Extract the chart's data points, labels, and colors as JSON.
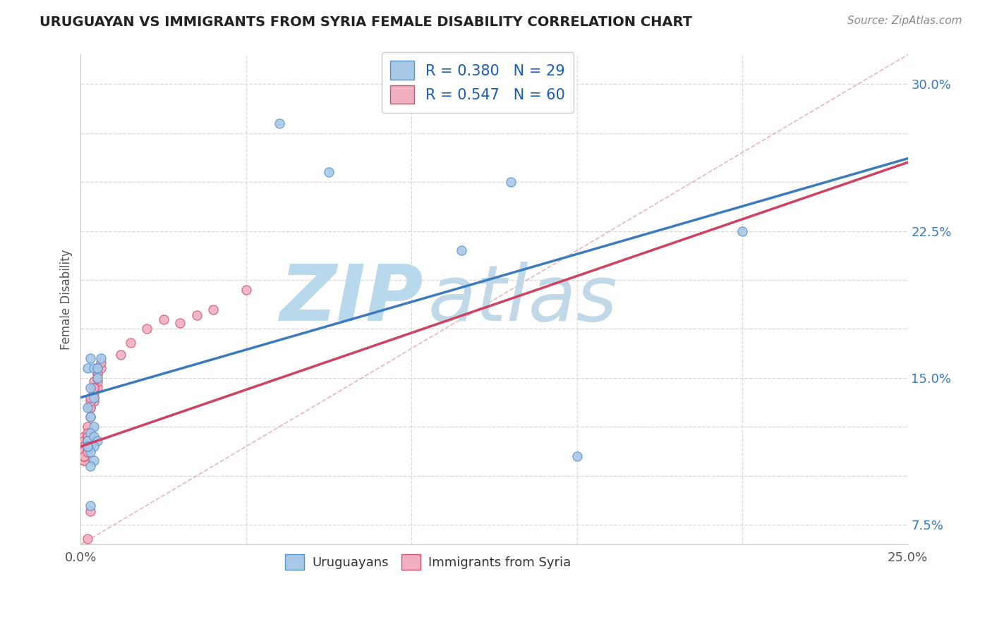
{
  "title": "URUGUAYAN VS IMMIGRANTS FROM SYRIA FEMALE DISABILITY CORRELATION CHART",
  "source": "Source: ZipAtlas.com",
  "ylabel": "Female Disability",
  "xlim": [
    0.0,
    0.25
  ],
  "ylim": [
    0.065,
    0.315
  ],
  "xticks": [
    0.0,
    0.05,
    0.1,
    0.15,
    0.2,
    0.25
  ],
  "yticks": [
    0.075,
    0.1,
    0.125,
    0.15,
    0.175,
    0.2,
    0.225,
    0.25,
    0.275,
    0.3
  ],
  "ytick_labels": [
    "7.5%",
    "",
    "",
    "15.0%",
    "",
    "",
    "22.5%",
    "",
    "",
    "30.0%"
  ],
  "xtick_labels": [
    "0.0%",
    "",
    "",
    "",
    "",
    "25.0%"
  ],
  "blue_color": "#a8c8e8",
  "pink_color": "#f0b0c0",
  "blue_edge_color": "#5590c8",
  "pink_edge_color": "#d05070",
  "blue_line_color": "#3a7abf",
  "pink_line_color": "#d04060",
  "diag_color": "#e8a0a8",
  "R_blue": 0.38,
  "N_blue": 29,
  "R_pink": 0.547,
  "N_pink": 60,
  "blue_line_y0": 0.14,
  "blue_line_y1": 0.262,
  "pink_line_y0": 0.115,
  "pink_line_y1": 0.26,
  "blue_scatter_x": [
    0.002,
    0.003,
    0.004,
    0.005,
    0.006,
    0.003,
    0.004,
    0.005,
    0.002,
    0.003,
    0.004,
    0.003,
    0.002,
    0.004,
    0.003,
    0.005,
    0.004,
    0.003,
    0.002,
    0.004,
    0.003,
    0.002,
    0.06,
    0.075,
    0.115,
    0.13,
    0.2,
    0.15,
    0.003
  ],
  "blue_scatter_y": [
    0.155,
    0.16,
    0.155,
    0.155,
    0.16,
    0.145,
    0.14,
    0.15,
    0.135,
    0.13,
    0.125,
    0.122,
    0.118,
    0.12,
    0.115,
    0.118,
    0.115,
    0.112,
    0.115,
    0.108,
    0.105,
    0.115,
    0.28,
    0.255,
    0.215,
    0.25,
    0.225,
    0.11,
    0.085
  ],
  "pink_scatter_x": [
    0.001,
    0.002,
    0.001,
    0.002,
    0.001,
    0.002,
    0.001,
    0.002,
    0.001,
    0.002,
    0.001,
    0.002,
    0.001,
    0.002,
    0.001,
    0.002,
    0.001,
    0.001,
    0.002,
    0.001,
    0.002,
    0.001,
    0.002,
    0.001,
    0.002,
    0.001,
    0.001,
    0.002,
    0.001,
    0.002,
    0.003,
    0.004,
    0.003,
    0.004,
    0.005,
    0.004,
    0.003,
    0.005,
    0.004,
    0.003,
    0.005,
    0.004,
    0.006,
    0.005,
    0.004,
    0.006,
    0.005,
    0.004,
    0.003,
    0.005,
    0.012,
    0.015,
    0.02,
    0.025,
    0.03,
    0.035,
    0.04,
    0.05,
    0.003,
    0.002
  ],
  "pink_scatter_y": [
    0.12,
    0.125,
    0.118,
    0.122,
    0.115,
    0.12,
    0.112,
    0.118,
    0.115,
    0.118,
    0.113,
    0.115,
    0.11,
    0.115,
    0.112,
    0.115,
    0.108,
    0.11,
    0.112,
    0.108,
    0.112,
    0.11,
    0.113,
    0.115,
    0.112,
    0.11,
    0.113,
    0.112,
    0.11,
    0.112,
    0.135,
    0.14,
    0.13,
    0.138,
    0.145,
    0.14,
    0.135,
    0.148,
    0.142,
    0.138,
    0.152,
    0.148,
    0.155,
    0.15,
    0.145,
    0.158,
    0.155,
    0.145,
    0.14,
    0.152,
    0.162,
    0.168,
    0.175,
    0.18,
    0.178,
    0.182,
    0.185,
    0.195,
    0.082,
    0.068
  ],
  "watermark_zip_color": "#b8d8ec",
  "watermark_atlas_color": "#c0d8e8",
  "background_color": "#ffffff",
  "grid_color": "#d8d8d8",
  "legend_text_color": "#1a5cb5"
}
